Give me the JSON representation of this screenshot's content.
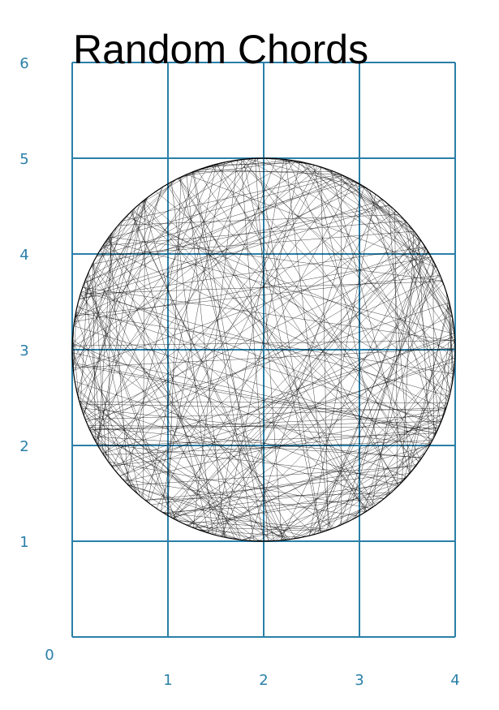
{
  "chart_data": {
    "type": "line",
    "title": "Random Chords",
    "xlabel": "",
    "ylabel": "",
    "xlim": [
      0,
      4
    ],
    "ylim": [
      0,
      6
    ],
    "x_ticks": [
      "1",
      "2",
      "3",
      "4"
    ],
    "y_ticks": [
      "1",
      "2",
      "3",
      "4",
      "5",
      "6"
    ],
    "origin_label": "0",
    "grid": true,
    "colors": {
      "axis": "#2a7fa8",
      "chords": "#000000",
      "circle": "#000000",
      "title": "#000000"
    },
    "circle": {
      "center": [
        2,
        3
      ],
      "radius": 2
    },
    "chord_count": 330,
    "chord_seed": 20240517
  }
}
